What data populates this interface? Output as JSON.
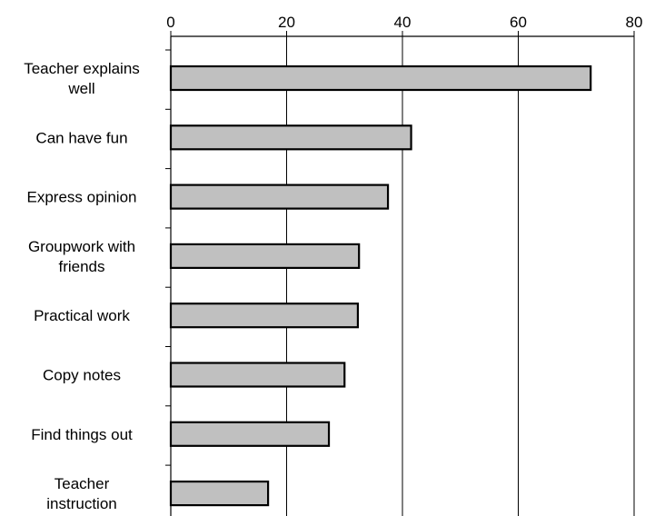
{
  "chart_data": {
    "type": "bar",
    "orientation": "horizontal",
    "categories": [
      "Teacher explains well",
      "Can have fun",
      "Express opinion",
      "Groupwork with friends",
      "Practical work",
      "Copy notes",
      "Find things out",
      "Teacher instruction"
    ],
    "category_lines": [
      [
        "Teacher explains",
        "well"
      ],
      [
        "Can have fun"
      ],
      [
        "Express opinion"
      ],
      [
        "Groupwork with",
        "friends"
      ],
      [
        "Practical work"
      ],
      [
        "Copy notes"
      ],
      [
        "Find things out"
      ],
      [
        "Teacher",
        "instruction"
      ]
    ],
    "values": [
      72.5,
      41.5,
      37.5,
      32.5,
      32.3,
      30.0,
      27.3,
      16.8
    ],
    "title": "",
    "xlabel": "",
    "ylabel": "",
    "xlim": [
      0,
      80
    ],
    "xticks": [
      0,
      20,
      40,
      60,
      80
    ],
    "x_axis_position": "top",
    "grid": true,
    "legend": "none",
    "colors": {
      "bar_fill": "#c0c0c0",
      "bar_stroke": "#000000",
      "gridline": "#000000"
    }
  }
}
